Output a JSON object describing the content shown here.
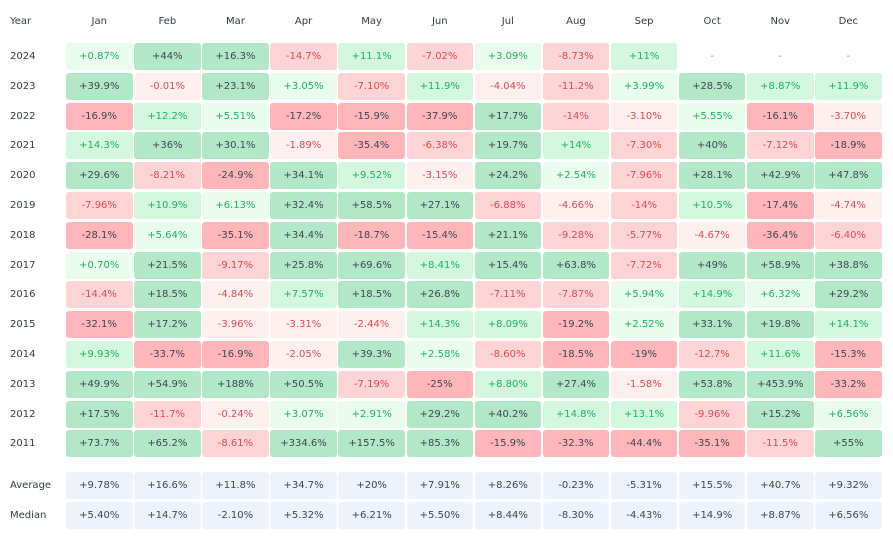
{
  "header": {
    "year_label": "Year",
    "months": [
      "Jan",
      "Feb",
      "Mar",
      "Apr",
      "May",
      "Jun",
      "Jul",
      "Aug",
      "Sep",
      "Oct",
      "Nov",
      "Dec"
    ]
  },
  "rows": [
    {
      "year": "2024",
      "cells": [
        [
          "+0.87%",
          "g1"
        ],
        [
          "+44%",
          "g3"
        ],
        [
          "+16.3%",
          "g3"
        ],
        [
          "-14.7%",
          "r2"
        ],
        [
          "+11.1%",
          "g2"
        ],
        [
          "-7.02%",
          "r2"
        ],
        [
          "+3.09%",
          "g1"
        ],
        [
          "-8.73%",
          "r2"
        ],
        [
          "+11%",
          "g2"
        ],
        [
          "-",
          "nil"
        ],
        [
          "-",
          "nil"
        ],
        [
          "-",
          "nil"
        ]
      ]
    },
    {
      "year": "2023",
      "cells": [
        [
          "+39.9%",
          "g3"
        ],
        [
          "-0.01%",
          "r1"
        ],
        [
          "+23.1%",
          "g3"
        ],
        [
          "+3.05%",
          "g1"
        ],
        [
          "-7.10%",
          "r2"
        ],
        [
          "+11.9%",
          "g2"
        ],
        [
          "-4.04%",
          "r1"
        ],
        [
          "-11.2%",
          "r2"
        ],
        [
          "+3.99%",
          "g1"
        ],
        [
          "+28.5%",
          "g3"
        ],
        [
          "+8.87%",
          "g2"
        ],
        [
          "+11.9%",
          "g2"
        ]
      ]
    },
    {
      "year": "2022",
      "cells": [
        [
          "-16.9%",
          "r3"
        ],
        [
          "+12.2%",
          "g2"
        ],
        [
          "+5.51%",
          "g1"
        ],
        [
          "-17.2%",
          "r3"
        ],
        [
          "-15.9%",
          "r3"
        ],
        [
          "-37.9%",
          "r3"
        ],
        [
          "+17.7%",
          "g3"
        ],
        [
          "-14%",
          "r2"
        ],
        [
          "-3.10%",
          "r1"
        ],
        [
          "+5.55%",
          "g1"
        ],
        [
          "-16.1%",
          "r3"
        ],
        [
          "-3.70%",
          "r1"
        ]
      ]
    },
    {
      "year": "2021",
      "cells": [
        [
          "+14.3%",
          "g2"
        ],
        [
          "+36%",
          "g3"
        ],
        [
          "+30.1%",
          "g3"
        ],
        [
          "-1.89%",
          "r1"
        ],
        [
          "-35.4%",
          "r3"
        ],
        [
          "-6.38%",
          "r2"
        ],
        [
          "+19.7%",
          "g3"
        ],
        [
          "+14%",
          "g2"
        ],
        [
          "-7.30%",
          "r2"
        ],
        [
          "+40%",
          "g3"
        ],
        [
          "-7.12%",
          "r2"
        ],
        [
          "-18.9%",
          "r3"
        ]
      ]
    },
    {
      "year": "2020",
      "cells": [
        [
          "+29.6%",
          "g3"
        ],
        [
          "-8.21%",
          "r2"
        ],
        [
          "-24.9%",
          "r3"
        ],
        [
          "+34.1%",
          "g3"
        ],
        [
          "+9.52%",
          "g2"
        ],
        [
          "-3.15%",
          "r1"
        ],
        [
          "+24.2%",
          "g3"
        ],
        [
          "+2.54%",
          "g1"
        ],
        [
          "-7.96%",
          "r2"
        ],
        [
          "+28.1%",
          "g3"
        ],
        [
          "+42.9%",
          "g3"
        ],
        [
          "+47.8%",
          "g3"
        ]
      ]
    },
    {
      "year": "2019",
      "cells": [
        [
          "-7.96%",
          "r2"
        ],
        [
          "+10.9%",
          "g2"
        ],
        [
          "+6.13%",
          "g1"
        ],
        [
          "+32.4%",
          "g3"
        ],
        [
          "+58.5%",
          "g3"
        ],
        [
          "+27.1%",
          "g3"
        ],
        [
          "-6.88%",
          "r2"
        ],
        [
          "-4.66%",
          "r1"
        ],
        [
          "-14%",
          "r2"
        ],
        [
          "+10.5%",
          "g2"
        ],
        [
          "-17.4%",
          "r3"
        ],
        [
          "-4.74%",
          "r1"
        ]
      ]
    },
    {
      "year": "2018",
      "cells": [
        [
          "-28.1%",
          "r3"
        ],
        [
          "+5.64%",
          "g1"
        ],
        [
          "-35.1%",
          "r3"
        ],
        [
          "+34.4%",
          "g3"
        ],
        [
          "-18.7%",
          "r3"
        ],
        [
          "-15.4%",
          "r3"
        ],
        [
          "+21.1%",
          "g3"
        ],
        [
          "-9.28%",
          "r2"
        ],
        [
          "-5.77%",
          "r2"
        ],
        [
          "-4.67%",
          "r1"
        ],
        [
          "-36.4%",
          "r3"
        ],
        [
          "-6.40%",
          "r2"
        ]
      ]
    },
    {
      "year": "2017",
      "cells": [
        [
          "+0.70%",
          "g1"
        ],
        [
          "+21.5%",
          "g3"
        ],
        [
          "-9.17%",
          "r2"
        ],
        [
          "+25.8%",
          "g3"
        ],
        [
          "+69.6%",
          "g3"
        ],
        [
          "+8.41%",
          "g2"
        ],
        [
          "+15.4%",
          "g3"
        ],
        [
          "+63.8%",
          "g3"
        ],
        [
          "-7.72%",
          "r2"
        ],
        [
          "+49%",
          "g3"
        ],
        [
          "+58.9%",
          "g3"
        ],
        [
          "+38.8%",
          "g3"
        ]
      ]
    },
    {
      "year": "2016",
      "cells": [
        [
          "-14.4%",
          "r2"
        ],
        [
          "+18.5%",
          "g3"
        ],
        [
          "-4.84%",
          "r1"
        ],
        [
          "+7.57%",
          "g2"
        ],
        [
          "+18.5%",
          "g3"
        ],
        [
          "+26.8%",
          "g3"
        ],
        [
          "-7.11%",
          "r2"
        ],
        [
          "-7.87%",
          "r2"
        ],
        [
          "+5.94%",
          "g1"
        ],
        [
          "+14.9%",
          "g2"
        ],
        [
          "+6.32%",
          "g1"
        ],
        [
          "+29.2%",
          "g3"
        ]
      ]
    },
    {
      "year": "2015",
      "cells": [
        [
          "-32.1%",
          "r3"
        ],
        [
          "+17.2%",
          "g3"
        ],
        [
          "-3.96%",
          "r1"
        ],
        [
          "-3.31%",
          "r1"
        ],
        [
          "-2.44%",
          "r1"
        ],
        [
          "+14.3%",
          "g2"
        ],
        [
          "+8.09%",
          "g2"
        ],
        [
          "-19.2%",
          "r3"
        ],
        [
          "+2.52%",
          "g1"
        ],
        [
          "+33.1%",
          "g3"
        ],
        [
          "+19.8%",
          "g3"
        ],
        [
          "+14.1%",
          "g2"
        ]
      ]
    },
    {
      "year": "2014",
      "cells": [
        [
          "+9.93%",
          "g2"
        ],
        [
          "-33.7%",
          "r3"
        ],
        [
          "-16.9%",
          "r3"
        ],
        [
          "-2.05%",
          "r1"
        ],
        [
          "+39.3%",
          "g3"
        ],
        [
          "+2.58%",
          "g1"
        ],
        [
          "-8.60%",
          "r2"
        ],
        [
          "-18.5%",
          "r3"
        ],
        [
          "-19%",
          "r3"
        ],
        [
          "-12.7%",
          "r2"
        ],
        [
          "+11.6%",
          "g2"
        ],
        [
          "-15.3%",
          "r3"
        ]
      ]
    },
    {
      "year": "2013",
      "cells": [
        [
          "+49.9%",
          "g3"
        ],
        [
          "+54.9%",
          "g3"
        ],
        [
          "+188%",
          "g3"
        ],
        [
          "+50.5%",
          "g3"
        ],
        [
          "-7.19%",
          "r2"
        ],
        [
          "-25%",
          "r3"
        ],
        [
          "+8.80%",
          "g2"
        ],
        [
          "+27.4%",
          "g3"
        ],
        [
          "-1.58%",
          "r1"
        ],
        [
          "+53.8%",
          "g3"
        ],
        [
          "+453.9%",
          "g3"
        ],
        [
          "-33.2%",
          "r3"
        ]
      ]
    },
    {
      "year": "2012",
      "cells": [
        [
          "+17.5%",
          "g3"
        ],
        [
          "-11.7%",
          "r2"
        ],
        [
          "-0.24%",
          "r1"
        ],
        [
          "+3.07%",
          "g1"
        ],
        [
          "+2.91%",
          "g1"
        ],
        [
          "+29.2%",
          "g3"
        ],
        [
          "+40.2%",
          "g3"
        ],
        [
          "+14.8%",
          "g2"
        ],
        [
          "+13.1%",
          "g2"
        ],
        [
          "-9.96%",
          "r2"
        ],
        [
          "+15.2%",
          "g3"
        ],
        [
          "+6.56%",
          "g1"
        ]
      ]
    },
    {
      "year": "2011",
      "cells": [
        [
          "+73.7%",
          "g3"
        ],
        [
          "+65.2%",
          "g3"
        ],
        [
          "-8.61%",
          "r2"
        ],
        [
          "+334.6%",
          "g3"
        ],
        [
          "+157.5%",
          "g3"
        ],
        [
          "+85.3%",
          "g3"
        ],
        [
          "-15.9%",
          "r3"
        ],
        [
          "-32.3%",
          "r3"
        ],
        [
          "-44.4%",
          "r3"
        ],
        [
          "-35.1%",
          "r3"
        ],
        [
          "-11.5%",
          "r2"
        ],
        [
          "+55%",
          "g3"
        ]
      ]
    }
  ],
  "summary": [
    {
      "label": "Average",
      "values": [
        "+9.78%",
        "+16.6%",
        "+11.8%",
        "+34.7%",
        "+20%",
        "+7.91%",
        "+8.26%",
        "-0.23%",
        "-5.31%",
        "+15.5%",
        "+40.7%",
        "+9.32%"
      ]
    },
    {
      "label": "Median",
      "values": [
        "+5.40%",
        "+14.7%",
        "-2.10%",
        "+5.32%",
        "+6.21%",
        "+5.50%",
        "+8.44%",
        "-8.30%",
        "-4.43%",
        "+14.9%",
        "+8.87%",
        "+6.56%"
      ]
    }
  ]
}
